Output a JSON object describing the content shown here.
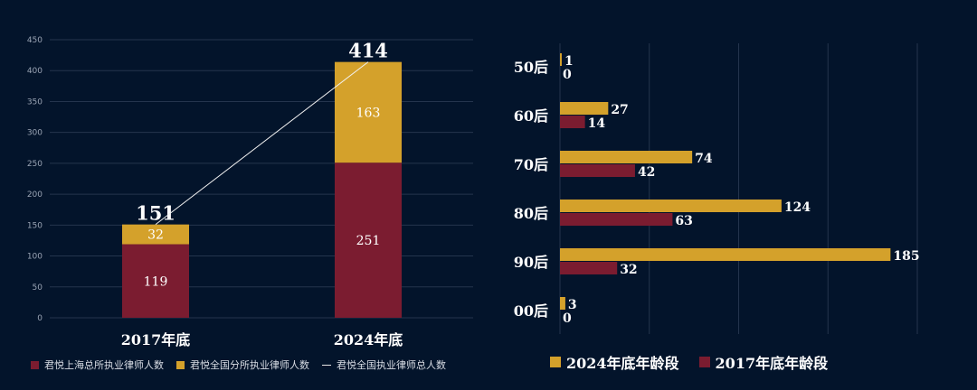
{
  "colors": {
    "background": "#03142b",
    "maroon": "#7b1c30",
    "gold": "#d4a12b",
    "grid": "#24344d",
    "line": "#f2f2f2"
  },
  "chart_data": [
    {
      "type": "bar",
      "stacked": true,
      "categories": [
        "2017年底",
        "2024年底"
      ],
      "series": [
        {
          "name": "君悦上海总所执业律师人数",
          "color": "#7b1c30",
          "values": [
            119,
            251
          ]
        },
        {
          "name": "君悦全国分所执业律师人数",
          "color": "#d4a12b",
          "values": [
            32,
            163
          ]
        }
      ],
      "line_series": {
        "name": "君悦全国执业律师总人数",
        "values": [
          151,
          414
        ]
      },
      "total_labels": [
        "151",
        "414"
      ],
      "ylim": [
        0,
        450
      ],
      "yticks": [
        "0",
        "50",
        "100",
        "150",
        "200",
        "250",
        "300",
        "350",
        "400",
        "450"
      ],
      "grid": true,
      "legend_position": "bottom"
    },
    {
      "type": "bar",
      "orientation": "horizontal",
      "categories": [
        "50后",
        "60后",
        "70后",
        "80后",
        "90后",
        "00后"
      ],
      "series": [
        {
          "name": "2024年底年龄段",
          "color": "#d4a12b",
          "values": [
            1,
            27,
            74,
            124,
            185,
            3
          ]
        },
        {
          "name": "2017年底年龄段",
          "color": "#7b1c30",
          "values": [
            0,
            14,
            42,
            63,
            32,
            0
          ]
        }
      ],
      "xlim": [
        0,
        200
      ],
      "grid": true,
      "legend_position": "bottom"
    }
  ]
}
